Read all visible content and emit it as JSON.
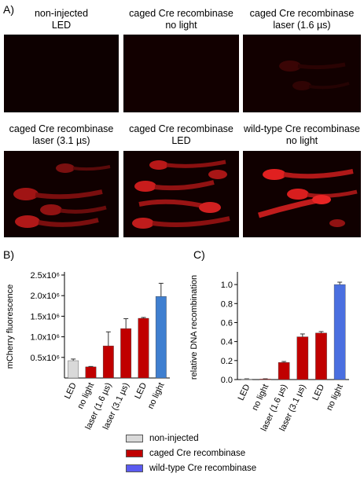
{
  "panel_a": {
    "letter": "A)",
    "images": [
      {
        "title1": "non-injected",
        "title2": "LED"
      },
      {
        "title1": "caged Cre recombinase",
        "title2": "no light"
      },
      {
        "title1": "caged Cre recombinase",
        "title2": "laser  (1.6 µs)"
      },
      {
        "title1": "caged Cre recombinase",
        "title2": "laser  (3.1 µs)"
      },
      {
        "title1": "caged Cre recombinase",
        "title2": "LED"
      },
      {
        "title1": "wild-type Cre recombinase",
        "title2": "no light"
      }
    ]
  },
  "panel_b": {
    "letter": "B)"
  },
  "panel_c": {
    "letter": "C)"
  },
  "legend": {
    "items": [
      {
        "label": "non-injected",
        "color": "#d9d9d9"
      },
      {
        "label": "caged Cre recombinase",
        "color": "#c00000"
      },
      {
        "label": "wild-type Cre recombinase",
        "color": "#5b5bf0"
      }
    ]
  },
  "chart_data": [
    {
      "type": "bar",
      "ylabel": "mCherry fluorescence",
      "categories": [
        "LED",
        "no light",
        "laser (1.6 µs)",
        "laser (3.1 µs)",
        "LED",
        "no light"
      ],
      "values": [
        420000,
        270000,
        780000,
        1200000,
        1450000,
        1980000
      ],
      "errors": [
        40000,
        10000,
        340000,
        240000,
        20000,
        320000
      ],
      "colors": [
        "#d9d9d9",
        "#c00000",
        "#c00000",
        "#c00000",
        "#c00000",
        "#3f7fd0"
      ],
      "ylim": [
        0,
        2500000
      ],
      "yticks": [
        500000,
        1000000,
        1500000,
        2000000,
        2500000
      ],
      "ytick_labels": [
        "0.5x10⁶",
        "1.0x10⁶",
        "1.5x10⁶",
        "2.0x10⁶",
        "2.5x10⁶"
      ]
    },
    {
      "type": "bar",
      "ylabel": "relative DNA recombination",
      "categories": [
        "LED",
        "no light",
        "laser (1.6 µs)",
        "laser (3.1 µs)",
        "LED",
        "no light"
      ],
      "values": [
        0.005,
        0.005,
        0.18,
        0.45,
        0.49,
        1.0
      ],
      "errors": [
        0.003,
        0.003,
        0.01,
        0.03,
        0.015,
        0.025
      ],
      "colors": [
        "#d9d9d9",
        "#c00000",
        "#c00000",
        "#c00000",
        "#c00000",
        "#4a6fe0"
      ],
      "ylim": [
        0,
        1.1
      ],
      "yticks": [
        0.0,
        0.2,
        0.4,
        0.6,
        0.8,
        1.0
      ],
      "ytick_labels": [
        "0.0",
        "0.2",
        "0.4",
        "0.6",
        "0.8",
        "1.0"
      ]
    }
  ]
}
